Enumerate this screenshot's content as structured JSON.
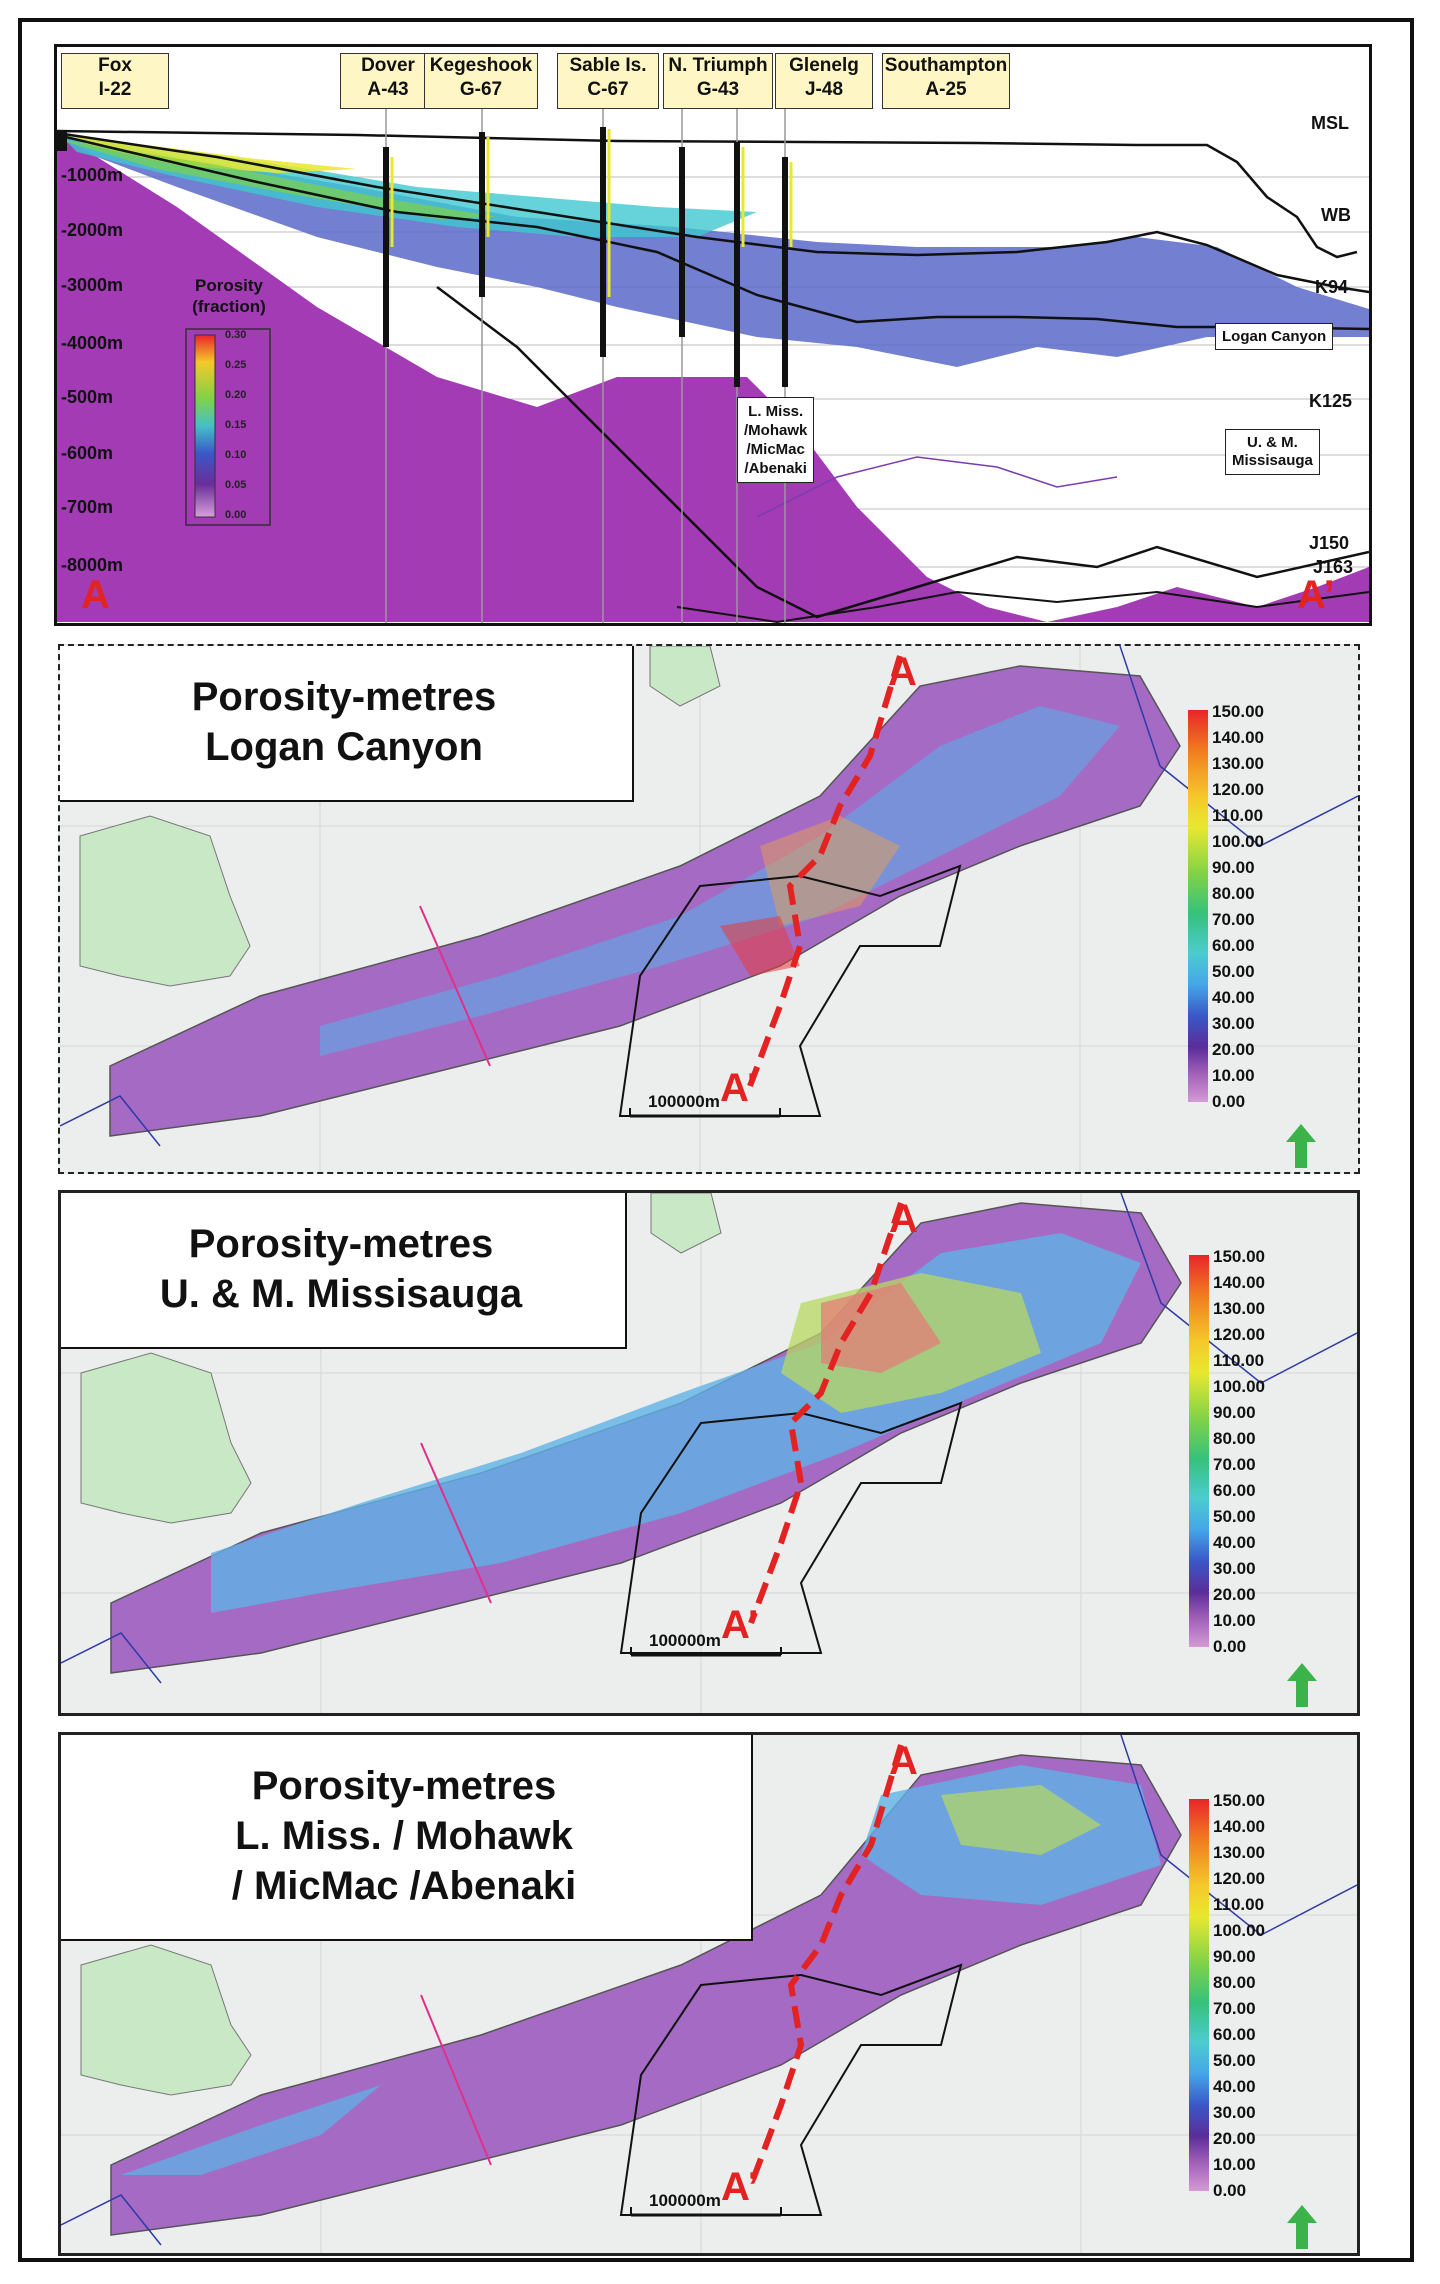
{
  "cross_section": {
    "wells": [
      {
        "name": "Fox",
        "id": "I-22"
      },
      {
        "name": "Dover",
        "id": "A-43"
      },
      {
        "name": "Kegeshook",
        "id": "G-67"
      },
      {
        "name": "Sable Is.",
        "id": "C-67"
      },
      {
        "name": "N. Triumph",
        "id": "G-43"
      },
      {
        "name": "Glenelg",
        "id": "J-48"
      },
      {
        "name": "Southampton",
        "id": "A-25"
      }
    ],
    "depth_labels": [
      "-1000m",
      "-2000m",
      "-3000m",
      "-4000m",
      "-500m",
      "-600m",
      "-700m",
      "-8000m"
    ],
    "horizons": [
      "MSL",
      "WB",
      "K94",
      "K125",
      "J150",
      "J163"
    ],
    "unit_labels": {
      "logan": "Logan Canyon",
      "missisauga": [
        "U. & M.",
        "Missisauga"
      ],
      "lower": [
        "L. Miss.",
        "/Mohawk",
        "/MicMac",
        "/Abenaki"
      ]
    },
    "porosity_title": [
      "Porosity",
      "(fraction)"
    ],
    "porosity_ticks": [
      "0.30",
      "0.25",
      "0.20",
      "0.15",
      "0.10",
      "0.05",
      "0.00"
    ],
    "end_labels": {
      "left": "A",
      "right": "A’"
    }
  },
  "maps": [
    {
      "title_lines": [
        "Porosity-metres",
        "Logan Canyon"
      ]
    },
    {
      "title_lines": [
        "Porosity-metres",
        "U. & M. Missisauga"
      ]
    },
    {
      "title_lines": [
        "Porosity-metres",
        "L. Miss. / Mohawk",
        "/ MicMac  /Abenaki"
      ]
    }
  ],
  "map_common": {
    "start_label": "A",
    "end_label": "A’",
    "scale_bar": "100000m",
    "colorbar_ticks": [
      "150.00",
      "140.00",
      "130.00",
      "120.00",
      "110.00",
      "100.00",
      "90.00",
      "80.00",
      "70.00",
      "60.00",
      "50.00",
      "40.00",
      "30.00",
      "20.00",
      "10.00",
      "0.00"
    ]
  },
  "colors": {
    "section_line": "#e32222",
    "green_arrow": "#3bb34a",
    "land": "#c9e8c6",
    "basin": "#a56ac4"
  }
}
